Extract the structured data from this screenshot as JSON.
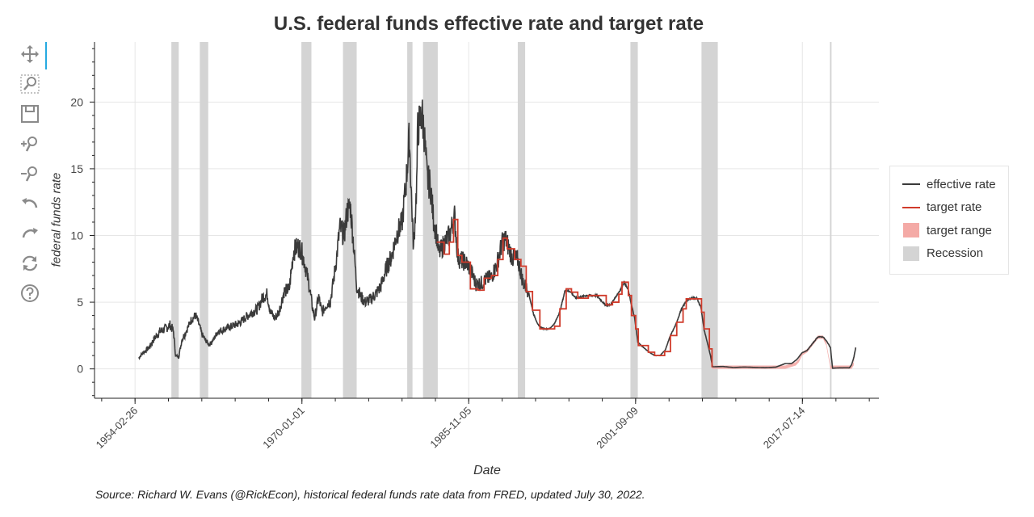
{
  "toolbar": {
    "tools": [
      {
        "name": "pan-tool",
        "icon": "move-arrows-icon",
        "active": true
      },
      {
        "name": "box-zoom-tool",
        "icon": "box-zoom-icon",
        "active": false
      },
      {
        "name": "save-tool",
        "icon": "save-icon",
        "active": false
      },
      {
        "name": "zoom-in-tool",
        "icon": "zoom-in-icon",
        "active": false
      },
      {
        "name": "zoom-out-tool",
        "icon": "zoom-out-icon",
        "active": false
      },
      {
        "name": "undo-tool",
        "icon": "undo-icon",
        "active": false
      },
      {
        "name": "redo-tool",
        "icon": "redo-icon",
        "active": false
      },
      {
        "name": "reset-tool",
        "icon": "reset-icon",
        "active": false
      },
      {
        "name": "help-tool",
        "icon": "help-icon",
        "active": false
      }
    ]
  },
  "chart_data": {
    "type": "line",
    "title": "U.S. federal funds effective rate and target rate",
    "xlabel": "Date",
    "ylabel": "federal funds rate",
    "source": "Source: Richard W. Evans (@RickEcon), historical federal funds rate data from FRED, updated July 30, 2022.",
    "x_tick_labels": [
      "1954-02-26",
      "1970-01-01",
      "1985-11-05",
      "2001-09-09",
      "2017-07-14"
    ],
    "x_tick_values": [
      1954.15,
      1970.0,
      1985.84,
      2001.69,
      2017.53
    ],
    "y_ticks": [
      0,
      5,
      10,
      15,
      20
    ],
    "xlim": [
      1950.3,
      2024.8
    ],
    "ylim": [
      -2.2,
      24.5
    ],
    "grid": true,
    "legend_position": "right",
    "colors": {
      "effective_rate": "#3a3a3a",
      "target_rate": "#d03b2b",
      "target_range": "#f4aaa6",
      "recession": "#d4d4d4"
    },
    "legend": [
      "effective rate",
      "target rate",
      "target range",
      "Recession"
    ],
    "recessions": [
      [
        1957.6,
        1958.3
      ],
      [
        1960.3,
        1961.1
      ],
      [
        1969.95,
        1970.9
      ],
      [
        1973.9,
        1975.2
      ],
      [
        1980.0,
        1980.5
      ],
      [
        1981.5,
        1982.9
      ],
      [
        1990.5,
        1991.2
      ],
      [
        2001.2,
        2001.9
      ],
      [
        2007.95,
        2009.5
      ],
      [
        2020.15,
        2020.3
      ]
    ],
    "series": [
      {
        "name": "effective rate",
        "x": [
          1954.5,
          1954.9,
          1955.5,
          1956.0,
          1956.5,
          1957.0,
          1957.5,
          1957.8,
          1958.0,
          1958.3,
          1958.6,
          1959.0,
          1959.5,
          1959.9,
          1960.2,
          1960.5,
          1960.8,
          1961.2,
          1961.6,
          1962.0,
          1963.0,
          1964.0,
          1965.0,
          1965.8,
          1966.3,
          1966.7,
          1967.0,
          1967.4,
          1967.8,
          1968.3,
          1968.8,
          1969.2,
          1969.6,
          1969.9,
          1970.3,
          1970.7,
          1971.0,
          1971.2,
          1971.6,
          1971.9,
          1972.3,
          1972.7,
          1973.0,
          1973.3,
          1973.6,
          1974.0,
          1974.3,
          1974.6,
          1974.9,
          1975.2,
          1975.6,
          1976.0,
          1976.5,
          1977.0,
          1977.5,
          1978.0,
          1978.5,
          1979.0,
          1979.5,
          1979.9,
          1980.2,
          1980.4,
          1980.6,
          1980.9,
          1981.0,
          1981.2,
          1981.4,
          1981.6,
          1981.9,
          1982.2,
          1982.5,
          1982.8,
          1983.0,
          1983.5,
          1984.0,
          1984.5,
          1984.8,
          1985.0,
          1985.5,
          1986.0,
          1986.5,
          1987.0,
          1987.5,
          1988.0,
          1988.5,
          1989.0,
          1989.3,
          1989.6,
          1990.0,
          1990.5,
          1991.0,
          1991.5,
          1992.0,
          1992.5,
          1993.0,
          1993.5,
          1994.0,
          1994.5,
          1995.0,
          1995.5,
          1996.0,
          1997.0,
          1998.0,
          1998.8,
          1999.3,
          1999.8,
          2000.3,
          2000.6,
          2001.0,
          2001.3,
          2001.6,
          2001.9,
          2002.3,
          2002.9,
          2003.5,
          2004.0,
          2004.5,
          2005.0,
          2005.5,
          2006.0,
          2006.5,
          2007.0,
          2007.5,
          2007.9,
          2008.2,
          2008.5,
          2008.8,
          2009.0,
          2010.0,
          2011.0,
          2012.0,
          2013.0,
          2014.0,
          2015.0,
          2015.9,
          2016.5,
          2017.0,
          2017.5,
          2018.0,
          2018.5,
          2019.0,
          2019.5,
          2019.9,
          2020.2,
          2020.4,
          2021.0,
          2021.5,
          2022.0,
          2022.2,
          2022.4,
          2022.6
        ],
        "values": [
          0.8,
          1.2,
          1.6,
          2.3,
          2.8,
          3.0,
          3.3,
          2.8,
          1.0,
          0.9,
          2.2,
          2.8,
          3.7,
          4.0,
          3.4,
          2.6,
          2.2,
          1.8,
          2.2,
          2.8,
          3.1,
          3.4,
          4.1,
          4.5,
          5.4,
          5.6,
          4.3,
          3.8,
          4.2,
          5.8,
          6.0,
          8.8,
          9.2,
          9.0,
          7.8,
          6.2,
          4.6,
          3.8,
          5.4,
          4.2,
          4.8,
          5.1,
          6.6,
          8.4,
          10.6,
          10.0,
          11.8,
          12.2,
          9.4,
          6.2,
          5.4,
          5.0,
          5.2,
          5.6,
          6.2,
          7.5,
          8.4,
          10.1,
          10.9,
          14.0,
          17.4,
          13.0,
          9.0,
          13.8,
          18.0,
          18.5,
          19.1,
          17.8,
          14.2,
          13.8,
          11.2,
          10.0,
          8.6,
          9.4,
          10.0,
          11.4,
          8.4,
          8.2,
          8.0,
          7.5,
          6.4,
          6.4,
          6.7,
          6.9,
          7.8,
          9.4,
          9.8,
          9.2,
          8.3,
          8.2,
          6.5,
          5.8,
          4.1,
          3.2,
          3.0,
          3.0,
          3.4,
          4.3,
          5.9,
          5.8,
          5.3,
          5.5,
          5.5,
          4.8,
          4.8,
          5.4,
          6.0,
          6.5,
          5.9,
          4.8,
          3.8,
          2.0,
          1.7,
          1.3,
          1.0,
          1.0,
          1.4,
          2.5,
          3.3,
          4.4,
          5.1,
          5.3,
          5.3,
          4.6,
          2.9,
          2.0,
          1.0,
          0.16,
          0.18,
          0.1,
          0.14,
          0.11,
          0.09,
          0.13,
          0.4,
          0.4,
          0.7,
          1.2,
          1.4,
          1.9,
          2.4,
          2.4,
          2.0,
          1.6,
          0.05,
          0.08,
          0.08,
          0.08,
          0.3,
          0.8,
          1.6
        ]
      },
      {
        "name": "target rate",
        "x": [
          1982.8,
          1983.5,
          1984.0,
          1984.4,
          1984.8,
          1985.2,
          1986.0,
          1986.7,
          1987.3,
          1988.0,
          1988.6,
          1989.1,
          1989.5,
          1990.2,
          1990.8,
          1991.3,
          1991.9,
          1992.6,
          1993.5,
          1994.0,
          1994.5,
          1995.1,
          1995.6,
          1996.2,
          1997.2,
          1998.5,
          1998.9,
          1999.5,
          2000.1,
          2000.4,
          2001.0,
          2001.3,
          2001.7,
          2001.95,
          2002.5,
          2002.9,
          2003.5,
          2004.45,
          2005.0,
          2005.6,
          2006.2,
          2006.5,
          2007.2,
          2007.7,
          2007.95,
          2008.2,
          2008.7,
          2008.95
        ],
        "values": [
          9.5,
          8.6,
          9.5,
          11.2,
          8.5,
          8.0,
          6.0,
          5.9,
          6.8,
          7.0,
          8.2,
          9.8,
          9.0,
          8.2,
          7.7,
          5.8,
          4.4,
          3.0,
          3.0,
          3.2,
          4.5,
          6.0,
          5.75,
          5.3,
          5.5,
          5.5,
          4.8,
          5.0,
          5.6,
          6.5,
          5.5,
          4.0,
          3.0,
          1.75,
          1.75,
          1.25,
          1.0,
          1.3,
          2.5,
          3.5,
          4.5,
          5.25,
          5.25,
          5.25,
          4.25,
          3.0,
          1.5,
          0.125
        ]
      },
      {
        "name": "target range",
        "x": [
          2008.95,
          2015.9,
          2016.9,
          2017.2,
          2017.5,
          2018.0,
          2018.5,
          2019.0,
          2019.5,
          2019.8,
          2020.2,
          2022.2,
          2022.4,
          2022.55
        ],
        "lower": [
          0,
          0,
          0.25,
          0.5,
          1.0,
          1.25,
          1.75,
          2.25,
          2.25,
          1.75,
          0,
          0,
          0.25,
          1.5
        ],
        "upper": [
          0.25,
          0.25,
          0.5,
          0.75,
          1.25,
          1.5,
          2.0,
          2.5,
          2.5,
          2.0,
          0.25,
          0.25,
          0.5,
          1.75
        ]
      }
    ]
  }
}
